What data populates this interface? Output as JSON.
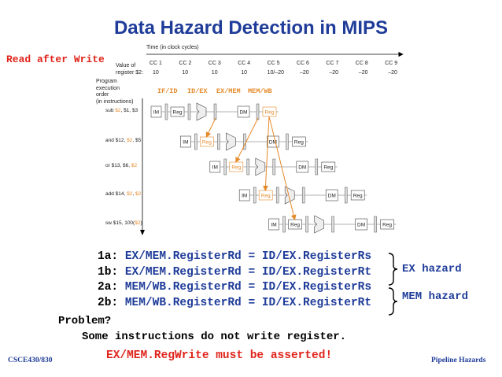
{
  "title": "Data Hazard Detection in MIPS",
  "side_label": "Read after Write",
  "time_axis_label": "Time (in clock cycles)",
  "value_label_line1": "Value of",
  "value_label_line2": "register $2:",
  "clock_cycles": [
    "CC 1",
    "CC 2",
    "CC 3",
    "CC 4",
    "CC 5",
    "CC 6",
    "CC 7",
    "CC 8",
    "CC 9"
  ],
  "register_values": [
    "10",
    "10",
    "10",
    "10",
    "10/–20",
    "–20",
    "–20",
    "–20",
    "–20"
  ],
  "program_order_label": [
    "Program",
    "execution",
    "order",
    "(in instructions)"
  ],
  "stage_registers": {
    "ifid": "IF/ID",
    "idex": "ID/EX",
    "exmem": "EX/MEM",
    "memwb": "MEM/WB"
  },
  "instructions": [
    {
      "parts": [
        {
          "t": "sub "
        },
        {
          "t": "$2",
          "hl": true
        },
        {
          "t": ", $1, $3"
        }
      ]
    },
    {
      "parts": [
        {
          "t": "and $12, "
        },
        {
          "t": "$2",
          "hl": true
        },
        {
          "t": ", $5"
        }
      ]
    },
    {
      "parts": [
        {
          "t": "or $13, $6, "
        },
        {
          "t": "$2",
          "hl": true
        }
      ]
    },
    {
      "parts": [
        {
          "t": "add $14, "
        },
        {
          "t": "$2",
          "hl": true
        },
        {
          "t": ", "
        },
        {
          "t": "$2",
          "hl": true
        }
      ]
    },
    {
      "parts": [
        {
          "t": "sw $15, 100("
        },
        {
          "t": "$2",
          "hl": true
        },
        {
          "t": ")"
        }
      ]
    }
  ],
  "pipeline_labels": {
    "im": "IM",
    "reg": "Reg",
    "dm": "DM"
  },
  "conditions": [
    {
      "id": "1a:",
      "text": "EX/MEM.RegisterRd = ID/EX.RegisterRs"
    },
    {
      "id": "1b:",
      "text": "EX/MEM.RegisterRd = ID/EX.RegisterRt"
    },
    {
      "id": "2a:",
      "text": "MEM/WB.RegisterRd = ID/EX.RegisterRs"
    },
    {
      "id": "2b:",
      "text": "MEM/WB.RegisterRd = ID/EX.RegisterRt"
    }
  ],
  "hazard_labels": {
    "ex": "EX hazard",
    "mem": "MEM hazard"
  },
  "problem_label": "Problem?",
  "problem_text": "Some instructions do not write register.",
  "solution_text": "EX/MEM.RegWrite must be asserted!",
  "footer_left": "CSCE430/830",
  "footer_right": "Pipeline Hazards",
  "colors": {
    "title": "#1f3c99",
    "accent": "#e0241b",
    "highlight": "#e58a2a"
  }
}
